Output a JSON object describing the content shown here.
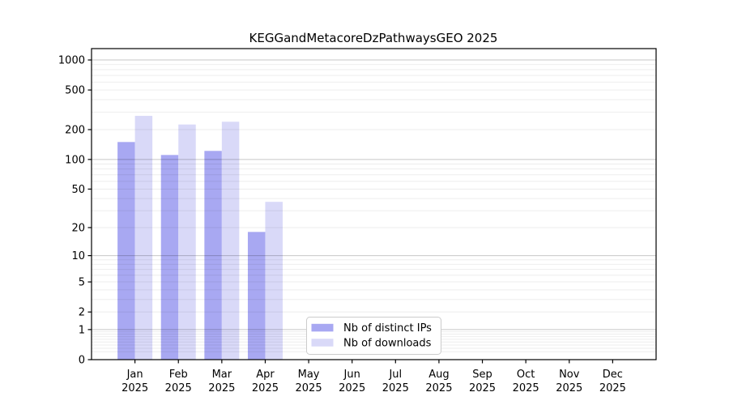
{
  "page": {
    "background": "#ffffff"
  },
  "chart_data": {
    "type": "bar",
    "title": "KEGGandMetacoreDzPathwaysGEO 2025",
    "months": [
      "Jan",
      "Feb",
      "Mar",
      "Apr",
      "May",
      "Jun",
      "Jul",
      "Aug",
      "Sep",
      "Oct",
      "Nov",
      "Dec"
    ],
    "year": "2025",
    "series": [
      {
        "name": "Nb of distinct IPs",
        "color": "#a8a8f2",
        "values": [
          150,
          111,
          122,
          18,
          0,
          0,
          0,
          0,
          0,
          0,
          0,
          0
        ]
      },
      {
        "name": "Nb of downloads",
        "color": "#d9d9f8",
        "values": [
          275,
          225,
          240,
          37,
          0,
          0,
          0,
          0,
          0,
          0,
          0,
          0
        ]
      }
    ],
    "yscale": "log1p",
    "yticks": [
      0,
      1,
      2,
      5,
      10,
      20,
      50,
      100,
      200,
      500,
      1000
    ],
    "ylim": [
      0,
      1300
    ],
    "xlabel": "",
    "ylabel": "",
    "grid": "major-and-minor",
    "legend_position": "bottom-center",
    "axis_color": "#000000",
    "grid_major_color": "rgba(0,0,0,0.22)",
    "grid_minor_color": "rgba(0,0,0,0.07)"
  }
}
